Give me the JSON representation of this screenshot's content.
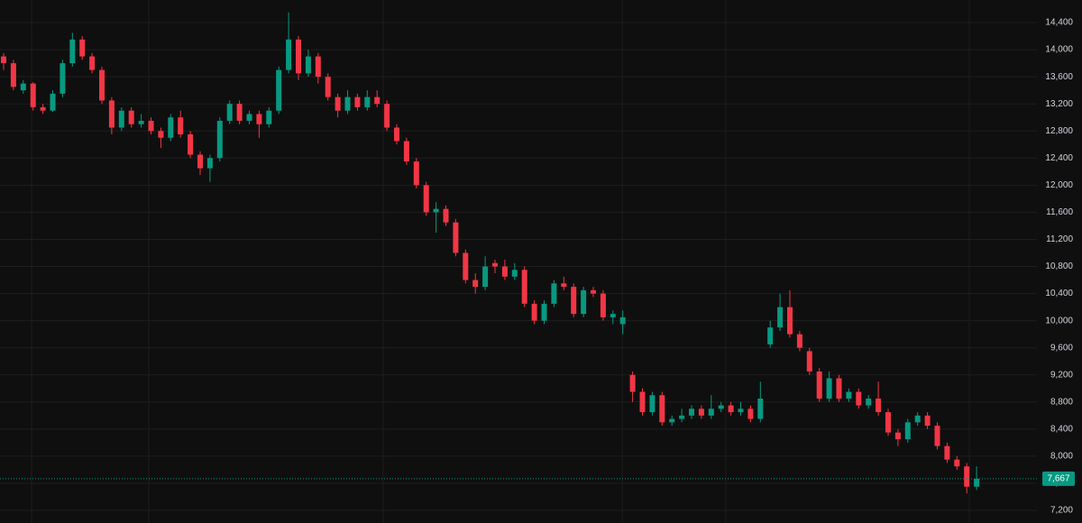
{
  "chart_data": {
    "type": "candlestick",
    "up_color": "#089981",
    "down_color": "#f23645",
    "grid": true,
    "ylim": [
      7014,
      14733
    ],
    "yticks": [
      {
        "value": 7200,
        "label": "7,200"
      },
      {
        "value": 7600,
        "label": "7,600"
      },
      {
        "value": 8000,
        "label": "8,000"
      },
      {
        "value": 8400,
        "label": "8,400"
      },
      {
        "value": 8800,
        "label": "8,800"
      },
      {
        "value": 9200,
        "label": "9,200"
      },
      {
        "value": 9600,
        "label": "9,600"
      },
      {
        "value": 10000,
        "label": "10,000"
      },
      {
        "value": 10400,
        "label": "10,400"
      },
      {
        "value": 10800,
        "label": "10,800"
      },
      {
        "value": 11200,
        "label": "11,200"
      },
      {
        "value": 11600,
        "label": "11,600"
      },
      {
        "value": 12000,
        "label": "12,000"
      },
      {
        "value": 12400,
        "label": "12,400"
      },
      {
        "value": 12800,
        "label": "12,800"
      },
      {
        "value": 13200,
        "label": "13,200"
      },
      {
        "value": 13600,
        "label": "13,600"
      },
      {
        "value": 14000,
        "label": "14,000"
      },
      {
        "value": 14400,
        "label": "14,400"
      }
    ],
    "last_price": 7667,
    "last_price_label": "7,667",
    "ohlc": [
      [
        13900,
        13950,
        13700,
        13800
      ],
      [
        13800,
        13850,
        13400,
        13450
      ],
      [
        13400,
        13550,
        13350,
        13500
      ],
      [
        13500,
        13520,
        13100,
        13150
      ],
      [
        13150,
        13200,
        13050,
        13100
      ],
      [
        13100,
        13400,
        13080,
        13350
      ],
      [
        13350,
        13850,
        13300,
        13800
      ],
      [
        13800,
        14250,
        13750,
        14150
      ],
      [
        14150,
        14200,
        13850,
        13900
      ],
      [
        13900,
        13950,
        13650,
        13700
      ],
      [
        13700,
        13750,
        13200,
        13250
      ],
      [
        13250,
        13300,
        12750,
        12850
      ],
      [
        12850,
        13150,
        12800,
        13100
      ],
      [
        13100,
        13150,
        12850,
        12900
      ],
      [
        12900,
        13050,
        12850,
        12950
      ],
      [
        12950,
        13000,
        12750,
        12800
      ],
      [
        12800,
        12850,
        12550,
        12700
      ],
      [
        12700,
        13050,
        12650,
        13000
      ],
      [
        13000,
        13100,
        12700,
        12750
      ],
      [
        12750,
        12800,
        12400,
        12450
      ],
      [
        12450,
        12500,
        12150,
        12250
      ],
      [
        12250,
        12450,
        12050,
        12400
      ],
      [
        12400,
        13000,
        12350,
        12950
      ],
      [
        12950,
        13250,
        12900,
        13200
      ],
      [
        13200,
        13250,
        12900,
        12950
      ],
      [
        12950,
        13100,
        12900,
        13050
      ],
      [
        13050,
        13100,
        12700,
        12900
      ],
      [
        12900,
        13150,
        12850,
        13100
      ],
      [
        13100,
        13750,
        13050,
        13700
      ],
      [
        13700,
        14550,
        13650,
        14150
      ],
      [
        14150,
        14200,
        13550,
        13650
      ],
      [
        13650,
        14000,
        13600,
        13900
      ],
      [
        13900,
        13950,
        13500,
        13600
      ],
      [
        13600,
        13650,
        13250,
        13300
      ],
      [
        13300,
        13350,
        13000,
        13100
      ],
      [
        13100,
        13400,
        13050,
        13300
      ],
      [
        13300,
        13350,
        13100,
        13150
      ],
      [
        13150,
        13400,
        13100,
        13300
      ],
      [
        13300,
        13400,
        13150,
        13200
      ],
      [
        13200,
        13250,
        12800,
        12850
      ],
      [
        12850,
        12900,
        12600,
        12650
      ],
      [
        12650,
        12700,
        12300,
        12350
      ],
      [
        12350,
        12400,
        11950,
        12000
      ],
      [
        12000,
        12050,
        11550,
        11600
      ],
      [
        11600,
        11750,
        11300,
        11650
      ],
      [
        11650,
        11700,
        11400,
        11450
      ],
      [
        11450,
        11500,
        10950,
        11000
      ],
      [
        11000,
        11050,
        10550,
        10600
      ],
      [
        10600,
        10700,
        10400,
        10500
      ],
      [
        10500,
        10950,
        10450,
        10800
      ],
      [
        10850,
        10900,
        10700,
        10800
      ],
      [
        10800,
        10900,
        10600,
        10650
      ],
      [
        10650,
        10850,
        10600,
        10750
      ],
      [
        10750,
        10800,
        10200,
        10250
      ],
      [
        10250,
        10300,
        9950,
        10000
      ],
      [
        10000,
        10300,
        9950,
        10250
      ],
      [
        10250,
        10600,
        10200,
        10550
      ],
      [
        10550,
        10650,
        10450,
        10500
      ],
      [
        10500,
        10550,
        10050,
        10100
      ],
      [
        10100,
        10500,
        10050,
        10450
      ],
      [
        10450,
        10500,
        10350,
        10400
      ],
      [
        10400,
        10450,
        10000,
        10050
      ],
      [
        10050,
        10150,
        9950,
        10100
      ],
      [
        9950,
        10150,
        9800,
        10050
      ],
      [
        9200,
        9250,
        8800,
        8950
      ],
      [
        8950,
        9000,
        8600,
        8650
      ],
      [
        8650,
        8950,
        8600,
        8900
      ],
      [
        8900,
        8950,
        8450,
        8500
      ],
      [
        8500,
        8600,
        8450,
        8550
      ],
      [
        8550,
        8700,
        8500,
        8600
      ],
      [
        8600,
        8750,
        8550,
        8700
      ],
      [
        8700,
        8750,
        8550,
        8600
      ],
      [
        8600,
        8900,
        8550,
        8700
      ],
      [
        8700,
        8800,
        8650,
        8750
      ],
      [
        8750,
        8800,
        8600,
        8650
      ],
      [
        8650,
        8800,
        8600,
        8700
      ],
      [
        8700,
        8750,
        8500,
        8550
      ],
      [
        8550,
        9100,
        8500,
        8850
      ],
      [
        9650,
        10000,
        9600,
        9900
      ],
      [
        9900,
        10400,
        9850,
        10200
      ],
      [
        10200,
        10450,
        9750,
        9800
      ],
      [
        9800,
        9850,
        9550,
        9600
      ],
      [
        9550,
        9600,
        9200,
        9250
      ],
      [
        9250,
        9300,
        8800,
        8850
      ],
      [
        8850,
        9250,
        8800,
        9150
      ],
      [
        9150,
        9200,
        8800,
        8850
      ],
      [
        8850,
        9000,
        8800,
        8950
      ],
      [
        8950,
        9000,
        8700,
        8750
      ],
      [
        8750,
        8900,
        8700,
        8850
      ],
      [
        8850,
        9100,
        8600,
        8650
      ],
      [
        8650,
        8700,
        8300,
        8350
      ],
      [
        8350,
        8400,
        8150,
        8250
      ],
      [
        8250,
        8550,
        8200,
        8500
      ],
      [
        8500,
        8650,
        8450,
        8600
      ],
      [
        8600,
        8650,
        8400,
        8450
      ],
      [
        8450,
        8500,
        8100,
        8150
      ],
      [
        8150,
        8200,
        7900,
        7950
      ],
      [
        7950,
        8000,
        7800,
        7850
      ],
      [
        7850,
        7900,
        7450,
        7550
      ],
      [
        7550,
        7850,
        7500,
        7667
      ]
    ]
  }
}
